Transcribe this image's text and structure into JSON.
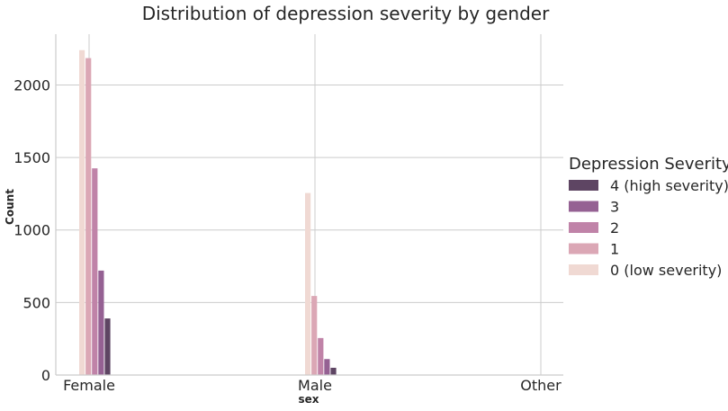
{
  "chart_data": {
    "type": "bar",
    "title": "Distribution of depression severity by gender",
    "xlabel": "sex",
    "ylabel": "Count",
    "categories": [
      "Female",
      "Male",
      "Other"
    ],
    "ylim": [
      0,
      2350
    ],
    "yticks": [
      0,
      500,
      1000,
      1500,
      2000
    ],
    "grid": true,
    "legend": {
      "title": "Depression Severity",
      "placement": "right",
      "order": [
        4,
        3,
        2,
        1,
        0
      ]
    },
    "series": [
      {
        "name": "0 (low severity)",
        "color": "#f0d9d3",
        "values": [
          2240,
          1255,
          0
        ]
      },
      {
        "name": "1",
        "color": "#dba7b5",
        "values": [
          2185,
          545,
          0
        ]
      },
      {
        "name": "2",
        "color": "#c083a8",
        "values": [
          1425,
          255,
          0
        ]
      },
      {
        "name": "3",
        "color": "#956193",
        "values": [
          720,
          110,
          0
        ]
      },
      {
        "name": "4 (high severity)",
        "color": "#5e4563",
        "values": [
          390,
          50,
          0
        ]
      }
    ]
  }
}
